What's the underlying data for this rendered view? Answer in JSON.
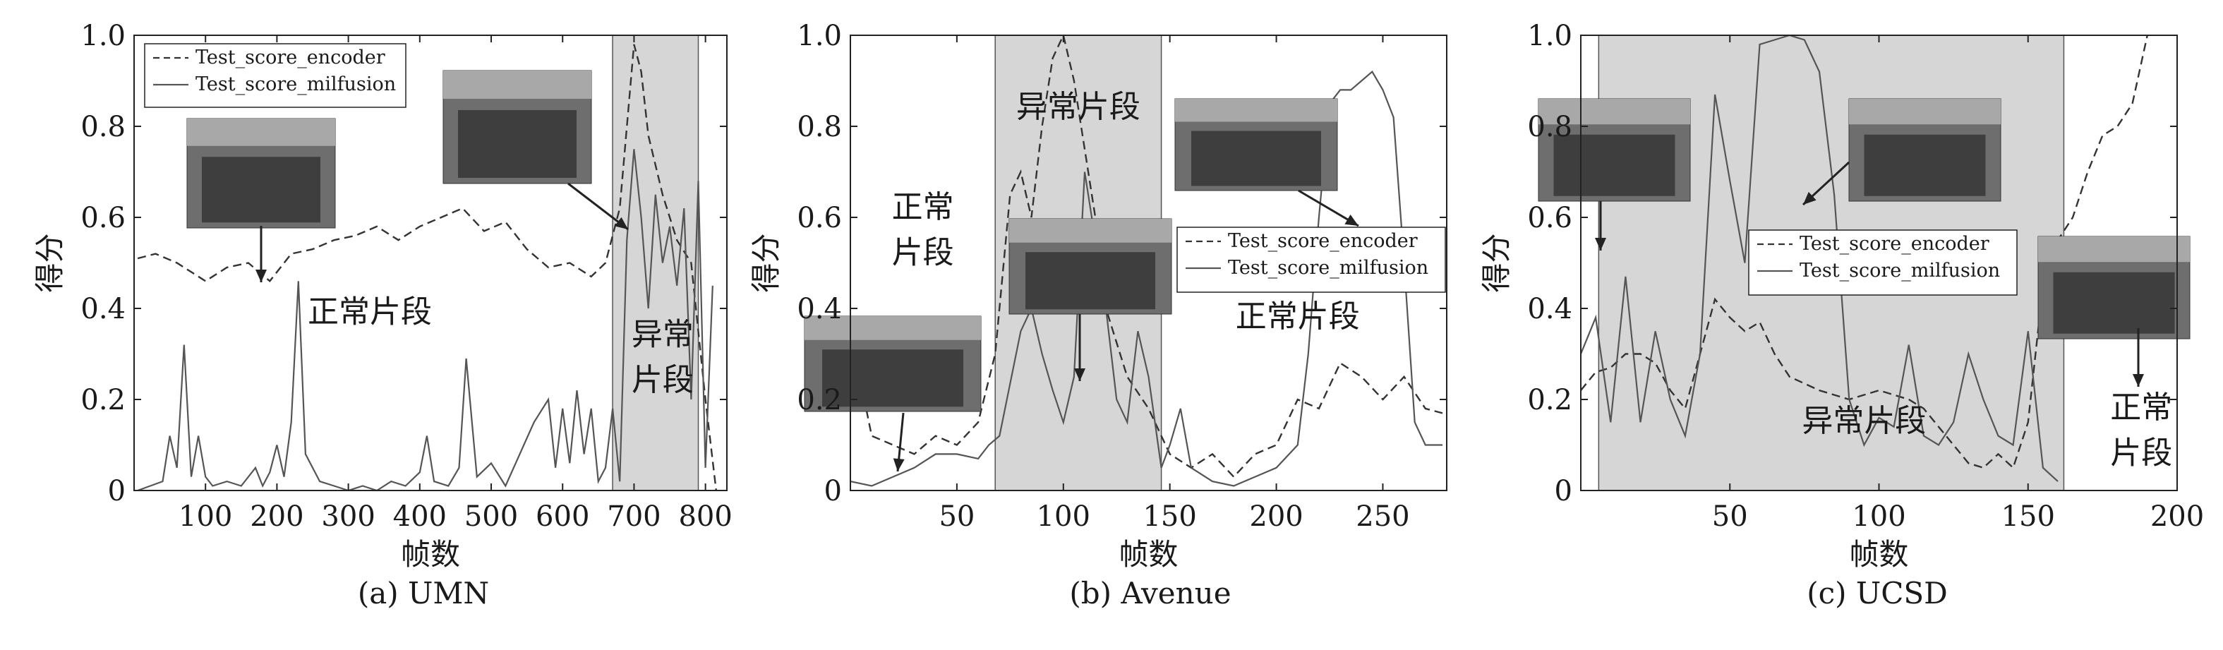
{
  "chart_data": [
    {
      "type": "line",
      "caption": "(a) UMN",
      "ylabel": "得分",
      "xlabel": "帧数",
      "xlim": [
        0,
        830
      ],
      "ylim": [
        0,
        1
      ],
      "xticks": [
        100,
        200,
        300,
        400,
        500,
        600,
        700,
        800
      ],
      "yticks": [
        0,
        0.2,
        0.4,
        0.6,
        0.8,
        1.0
      ],
      "ytick_labels": [
        "0",
        "0.2",
        "0.4",
        "0.6",
        "0.8",
        "1.0"
      ],
      "legend": {
        "placement": "top-left",
        "entries": [
          "Test_score_encoder",
          "Test_score_milfusion"
        ]
      },
      "shaded": [
        [
          670,
          790
        ]
      ],
      "region_labels": [
        {
          "text": "正常片段",
          "x": 330,
          "y": 0.37
        },
        {
          "text": "异常",
          "x": 740,
          "y": 0.32
        },
        {
          "text": "片段",
          "x": 740,
          "y": 0.22
        }
      ],
      "series": [
        {
          "name": "Test_score_encoder",
          "style": "dashed",
          "x": [
            5,
            30,
            60,
            80,
            100,
            130,
            160,
            190,
            220,
            250,
            280,
            310,
            340,
            370,
            400,
            430,
            460,
            490,
            520,
            550,
            580,
            610,
            640,
            660,
            680,
            700,
            710,
            720,
            740,
            760,
            780,
            800,
            815
          ],
          "y": [
            0.51,
            0.52,
            0.5,
            0.48,
            0.46,
            0.49,
            0.5,
            0.46,
            0.52,
            0.53,
            0.55,
            0.56,
            0.58,
            0.55,
            0.58,
            0.6,
            0.62,
            0.57,
            0.59,
            0.53,
            0.49,
            0.5,
            0.47,
            0.5,
            0.62,
            0.98,
            0.92,
            0.78,
            0.65,
            0.55,
            0.5,
            0.2,
            0.0
          ]
        },
        {
          "name": "Test_score_milfusion",
          "style": "solid",
          "x": [
            5,
            40,
            50,
            60,
            70,
            80,
            90,
            100,
            110,
            130,
            150,
            170,
            180,
            190,
            200,
            210,
            220,
            230,
            240,
            260,
            280,
            300,
            320,
            340,
            360,
            380,
            400,
            410,
            420,
            440,
            455,
            465,
            480,
            500,
            520,
            540,
            560,
            580,
            590,
            600,
            610,
            620,
            630,
            640,
            650,
            660,
            670,
            680,
            690,
            700,
            710,
            720,
            730,
            740,
            750,
            760,
            770,
            780,
            790,
            800,
            810
          ],
          "y": [
            0.0,
            0.02,
            0.12,
            0.05,
            0.32,
            0.03,
            0.12,
            0.03,
            0.01,
            0.02,
            0.01,
            0.05,
            0.01,
            0.04,
            0.1,
            0.03,
            0.15,
            0.46,
            0.08,
            0.02,
            0.01,
            0.0,
            0.01,
            0.0,
            0.02,
            0.01,
            0.04,
            0.12,
            0.02,
            0.01,
            0.05,
            0.29,
            0.03,
            0.06,
            0.01,
            0.08,
            0.15,
            0.2,
            0.05,
            0.18,
            0.06,
            0.22,
            0.08,
            0.18,
            0.02,
            0.05,
            0.18,
            0.02,
            0.55,
            0.75,
            0.6,
            0.4,
            0.65,
            0.5,
            0.58,
            0.45,
            0.62,
            0.2,
            0.68,
            0.05,
            0.45
          ]
        }
      ]
    },
    {
      "type": "line",
      "caption": "(b) Avenue",
      "ylabel": "得分",
      "xlabel": "帧数",
      "xlim": [
        0,
        280
      ],
      "ylim": [
        0,
        1
      ],
      "xticks": [
        50,
        100,
        150,
        200,
        250
      ],
      "yticks": [
        0,
        0.2,
        0.4,
        0.6,
        0.8,
        1.0
      ],
      "ytick_labels": [
        "0",
        "0.2",
        "0.4",
        "0.6",
        "0.8",
        "1.0"
      ],
      "legend": {
        "placement": "center-right",
        "entries": [
          "Test_score_encoder",
          "Test_score_milfusion"
        ]
      },
      "shaded": [
        [
          68,
          146
        ]
      ],
      "region_labels": [
        {
          "text": "异常片段",
          "x": 107,
          "y": 0.82
        },
        {
          "text": "正常",
          "x": 34,
          "y": 0.6
        },
        {
          "text": "片段",
          "x": 34,
          "y": 0.5
        },
        {
          "text": "正常片段",
          "x": 210,
          "y": 0.36
        }
      ],
      "series": [
        {
          "name": "Test_score_encoder",
          "style": "dashed",
          "x": [
            0,
            10,
            20,
            30,
            40,
            50,
            60,
            68,
            75,
            80,
            85,
            90,
            95,
            100,
            105,
            110,
            115,
            120,
            130,
            140,
            146,
            150,
            160,
            170,
            180,
            190,
            200,
            210,
            220,
            230,
            240,
            250,
            260,
            270,
            278
          ],
          "y": [
            0.35,
            0.12,
            0.1,
            0.08,
            0.12,
            0.1,
            0.15,
            0.3,
            0.65,
            0.7,
            0.6,
            0.8,
            0.95,
            1.0,
            0.9,
            0.75,
            0.6,
            0.4,
            0.25,
            0.18,
            0.12,
            0.08,
            0.05,
            0.08,
            0.03,
            0.08,
            0.1,
            0.2,
            0.18,
            0.28,
            0.25,
            0.2,
            0.25,
            0.18,
            0.17
          ]
        },
        {
          "name": "Test_score_milfusion",
          "style": "solid",
          "x": [
            0,
            10,
            20,
            30,
            40,
            50,
            60,
            65,
            70,
            80,
            85,
            90,
            95,
            100,
            105,
            110,
            120,
            125,
            130,
            135,
            140,
            146,
            150,
            155,
            160,
            170,
            180,
            190,
            200,
            210,
            215,
            220,
            225,
            230,
            235,
            240,
            245,
            250,
            255,
            260,
            265,
            270,
            278
          ],
          "y": [
            0.02,
            0.01,
            0.03,
            0.05,
            0.08,
            0.08,
            0.07,
            0.1,
            0.12,
            0.35,
            0.4,
            0.3,
            0.22,
            0.15,
            0.25,
            0.7,
            0.4,
            0.2,
            0.15,
            0.35,
            0.25,
            0.05,
            0.1,
            0.18,
            0.05,
            0.02,
            0.01,
            0.03,
            0.05,
            0.1,
            0.3,
            0.6,
            0.85,
            0.88,
            0.88,
            0.9,
            0.92,
            0.88,
            0.82,
            0.5,
            0.15,
            0.1,
            0.1
          ]
        }
      ]
    },
    {
      "type": "line",
      "caption": "(c) UCSD",
      "ylabel": "得分",
      "xlabel": "帧数",
      "xlim": [
        0,
        200
      ],
      "ylim": [
        0,
        1
      ],
      "xticks": [
        50,
        100,
        150,
        200
      ],
      "yticks": [
        0,
        0.2,
        0.4,
        0.6,
        0.8,
        1.0
      ],
      "ytick_labels": [
        "0",
        "0.2",
        "0.4",
        "0.6",
        "0.8",
        "1.0"
      ],
      "legend": {
        "placement": "center",
        "entries": [
          "Test_score_encoder",
          "Test_score_milfusion"
        ]
      },
      "shaded": [
        [
          6,
          162
        ]
      ],
      "region_labels": [
        {
          "text": "异常片段",
          "x": 95,
          "y": 0.13
        },
        {
          "text": "正常",
          "x": 188,
          "y": 0.16
        },
        {
          "text": "片段",
          "x": 188,
          "y": 0.06
        }
      ],
      "series": [
        {
          "name": "Test_score_encoder",
          "style": "dashed",
          "x": [
            0,
            5,
            10,
            15,
            20,
            25,
            30,
            35,
            40,
            45,
            50,
            55,
            60,
            65,
            70,
            80,
            90,
            100,
            110,
            115,
            120,
            125,
            130,
            135,
            140,
            145,
            150,
            155,
            160,
            165,
            170,
            175,
            180,
            185,
            190
          ],
          "y": [
            0.22,
            0.26,
            0.27,
            0.3,
            0.3,
            0.28,
            0.22,
            0.18,
            0.3,
            0.42,
            0.38,
            0.35,
            0.37,
            0.3,
            0.25,
            0.22,
            0.2,
            0.22,
            0.2,
            0.18,
            0.14,
            0.1,
            0.06,
            0.05,
            0.08,
            0.05,
            0.15,
            0.45,
            0.55,
            0.6,
            0.7,
            0.78,
            0.8,
            0.85,
            1.0
          ]
        },
        {
          "name": "Test_score_milfusion",
          "style": "solid",
          "x": [
            0,
            5,
            10,
            15,
            20,
            25,
            30,
            35,
            40,
            45,
            50,
            55,
            60,
            65,
            70,
            75,
            80,
            85,
            90,
            95,
            100,
            105,
            110,
            115,
            120,
            125,
            130,
            135,
            140,
            145,
            150,
            155,
            160
          ],
          "y": [
            0.3,
            0.38,
            0.15,
            0.47,
            0.15,
            0.35,
            0.2,
            0.12,
            0.3,
            0.87,
            0.68,
            0.5,
            0.98,
            0.99,
            1.0,
            0.99,
            0.92,
            0.65,
            0.2,
            0.1,
            0.16,
            0.14,
            0.32,
            0.12,
            0.1,
            0.15,
            0.3,
            0.2,
            0.12,
            0.1,
            0.35,
            0.05,
            0.02
          ]
        }
      ]
    }
  ]
}
